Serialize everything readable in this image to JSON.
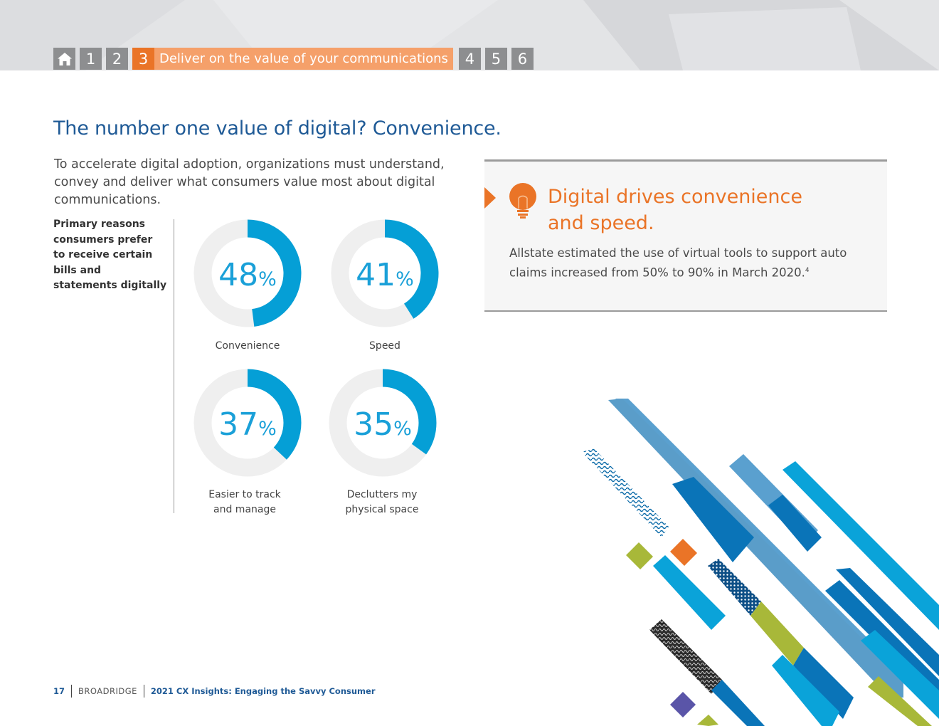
{
  "nav": {
    "items": [
      "1",
      "2"
    ],
    "active_number": "3",
    "active_label": "Deliver on the value of your communications",
    "after_items": [
      "4",
      "5",
      "6"
    ]
  },
  "page": {
    "title": "The number one value of digital? Convenience.",
    "intro": "To accelerate digital adoption, organizations must understand, convey and deliver what consumers value most about digital communications."
  },
  "chart_caption": "Primary reasons consumers prefer to receive certain bills and statements digitally",
  "chart_data": {
    "type": "pie",
    "title": "Primary reasons consumers prefer to receive certain bills and statements digitally",
    "unit": "%",
    "categories": [
      "Convenience",
      "Speed",
      "Easier to track and manage",
      "Declutters my physical space"
    ],
    "values": [
      48,
      41,
      37,
      35
    ],
    "display_labels": [
      [
        "Convenience"
      ],
      [
        "Speed"
      ],
      [
        "Easier to track",
        "and manage"
      ],
      [
        "Declutters my",
        "physical space"
      ]
    ],
    "colors": {
      "fill": "#059fd6",
      "track": "#efefef",
      "text": "#1aa0d8"
    }
  },
  "callout": {
    "title_line1": "Digital drives convenience",
    "title_line2": "and speed.",
    "body": "Allstate estimated the use of virtual tools to support auto claims increased from 50% to 90% in March 2020.",
    "footnote": "4",
    "icon": "lightbulb-icon",
    "accent": "#ea7427"
  },
  "footer": {
    "page_number": "17",
    "brand": "BROADRIDGE",
    "document": "2021 CX Insights: Engaging the Savvy Consumer"
  }
}
